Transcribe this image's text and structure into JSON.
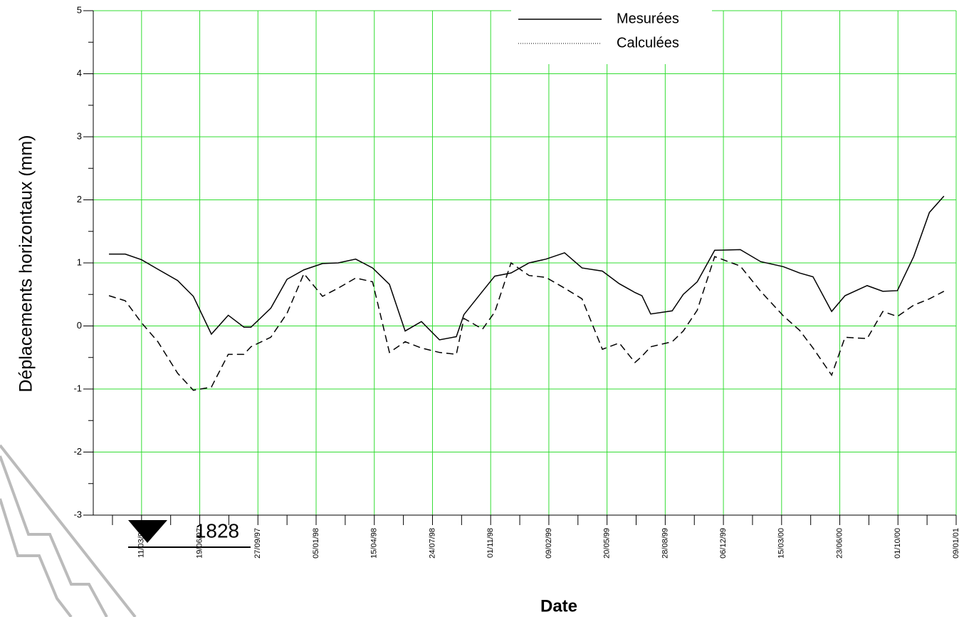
{
  "chart_data": {
    "type": "line",
    "xlabel": "Date",
    "ylabel": "Déplacements horizontaux (mm)",
    "annotation": "1828",
    "x": [
      -56,
      -28,
      0,
      28,
      62,
      89,
      120,
      149,
      176,
      188,
      222,
      250,
      279,
      311,
      338,
      368,
      397,
      426,
      453,
      481,
      512,
      541,
      554,
      586,
      607,
      635,
      666,
      695,
      727,
      757,
      792,
      821,
      848,
      860,
      875,
      912,
      931,
      955,
      985,
      1029,
      1064,
      1103,
      1131,
      1154,
      1186,
      1209,
      1247,
      1274,
      1299,
      1327,
      1354,
      1379
    ],
    "series": [
      {
        "name": "Mesurées",
        "color": "#000000",
        "dash": "solid",
        "values": [
          1.14,
          1.14,
          1.05,
          0.9,
          0.72,
          0.47,
          -0.13,
          0.17,
          -0.02,
          -0.02,
          0.28,
          0.74,
          0.89,
          0.99,
          1.0,
          1.06,
          0.92,
          0.66,
          -0.08,
          0.07,
          -0.22,
          -0.17,
          0.18,
          0.55,
          0.79,
          0.84,
          1.0,
          1.06,
          1.16,
          0.92,
          0.87,
          0.67,
          0.53,
          0.48,
          0.19,
          0.24,
          0.5,
          0.7,
          1.2,
          1.21,
          1.02,
          0.94,
          0.84,
          0.78,
          0.23,
          0.48,
          0.64,
          0.55,
          0.56,
          1.1,
          1.8,
          2.06
        ]
      },
      {
        "name": "Calculées",
        "color": "#000000",
        "dash": "dashed",
        "values": [
          0.48,
          0.4,
          0.05,
          -0.25,
          -0.75,
          -1.02,
          -0.97,
          -0.45,
          -0.45,
          -0.33,
          -0.18,
          0.2,
          0.83,
          0.47,
          0.6,
          0.76,
          0.7,
          -0.42,
          -0.25,
          -0.35,
          -0.42,
          -0.45,
          0.12,
          -0.05,
          0.22,
          1.0,
          0.8,
          0.77,
          0.6,
          0.43,
          -0.37,
          -0.27,
          -0.58,
          -0.48,
          -0.33,
          -0.25,
          -0.08,
          0.25,
          1.1,
          0.95,
          0.55,
          0.16,
          -0.07,
          -0.35,
          -0.78,
          -0.18,
          -0.2,
          0.23,
          0.15,
          0.33,
          0.43,
          0.55
        ]
      }
    ],
    "xlim": [
      -83,
      1400
    ],
    "xticks": [
      {
        "value": 0,
        "label": "11/03/97"
      },
      {
        "value": 100,
        "label": "19/06/97"
      },
      {
        "value": 200,
        "label": "27/09/97"
      },
      {
        "value": 300,
        "label": "05/01/98"
      },
      {
        "value": 400,
        "label": "15/04/98"
      },
      {
        "value": 500,
        "label": "24/07/98"
      },
      {
        "value": 600,
        "label": "01/11/98"
      },
      {
        "value": 700,
        "label": "09/02/99"
      },
      {
        "value": 800,
        "label": "20/05/99"
      },
      {
        "value": 900,
        "label": "28/08/99"
      },
      {
        "value": 1000,
        "label": "06/12/99"
      },
      {
        "value": 1100,
        "label": "15/03/00"
      },
      {
        "value": 1200,
        "label": "23/06/00"
      },
      {
        "value": 1300,
        "label": "01/10/00"
      },
      {
        "value": 1400,
        "label": "09/01/01"
      }
    ],
    "ylim": [
      -3,
      5
    ],
    "yticks": [
      -3,
      -2,
      -1,
      0,
      1,
      2,
      3,
      4,
      5
    ],
    "grid": true,
    "grid_color": "#33dd33",
    "legend": "upper right"
  }
}
